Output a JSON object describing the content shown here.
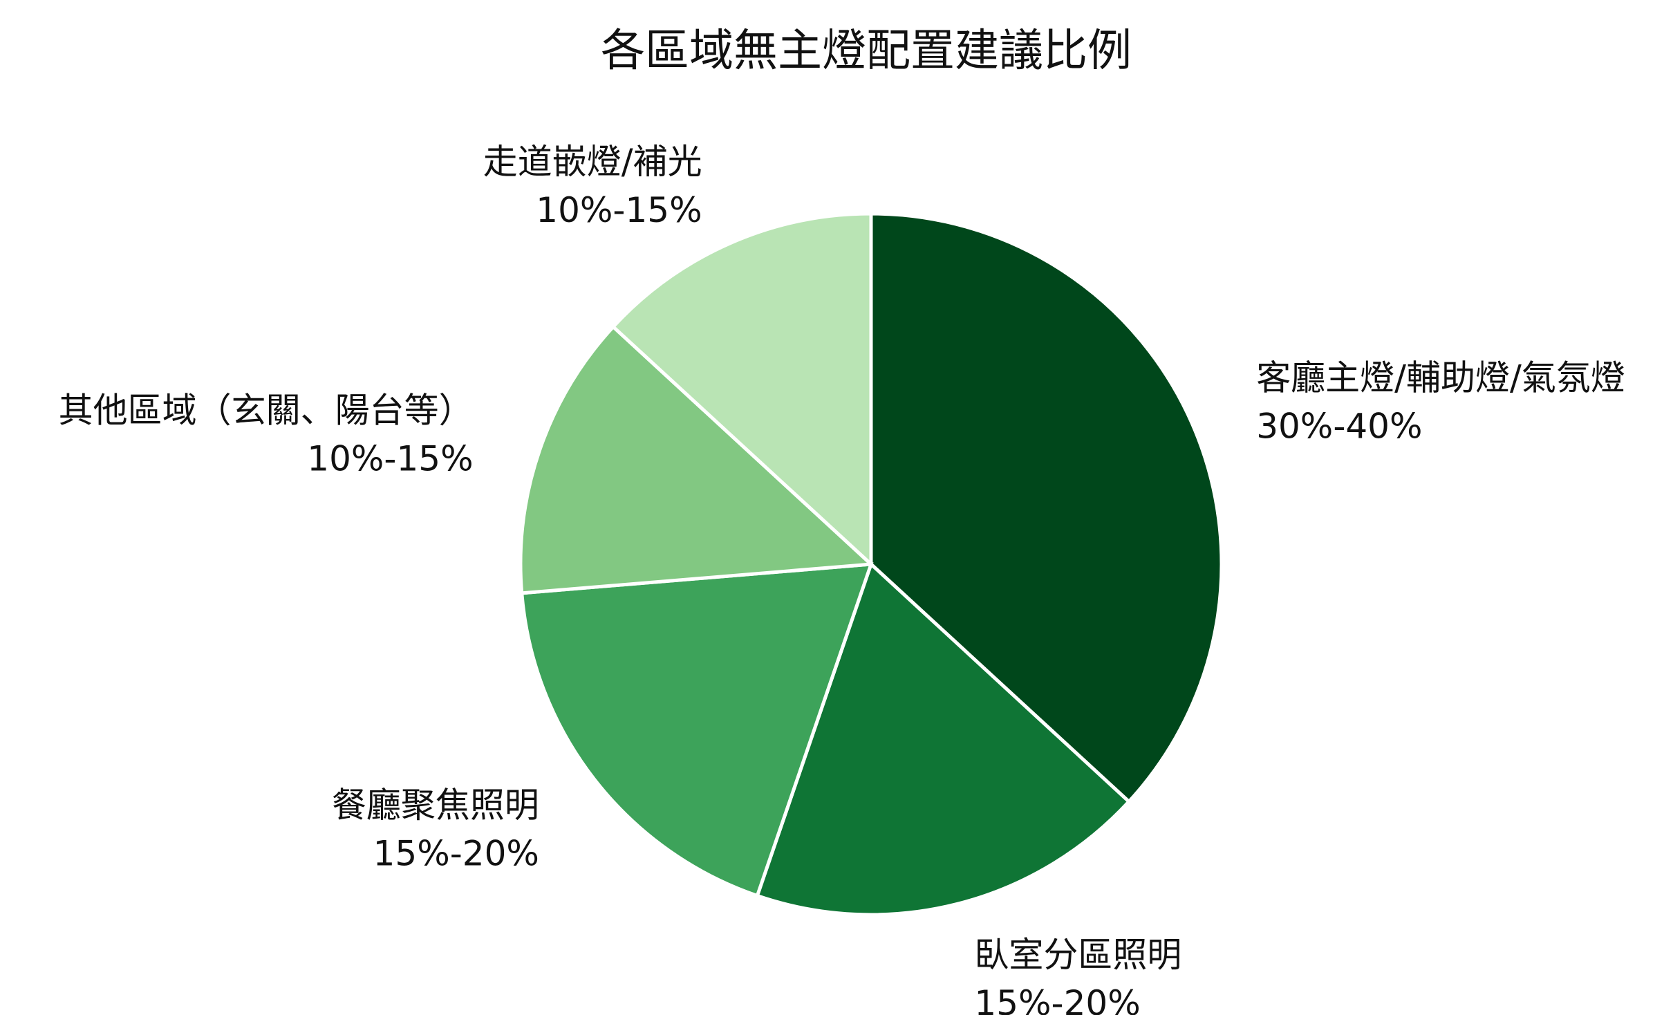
{
  "chart_data": {
    "type": "pie",
    "title": "各區域無主燈配置建議比例",
    "start_angle_deg": 0,
    "direction": "clockwise",
    "legend": "none",
    "slices": [
      {
        "name": "客廳主燈/輔助燈/氣氛燈",
        "range_label": "30%-40%",
        "value": 35,
        "color": "#00471b"
      },
      {
        "name": "臥室分區照明",
        "range_label": "15%-20%",
        "value": 17.5,
        "color": "#0f7535"
      },
      {
        "name": "餐廳聚焦照明",
        "range_label": "15%-20%",
        "value": 17.5,
        "color": "#3da35a"
      },
      {
        "name": "其他區域（玄關、陽台等）",
        "range_label": "10%-15%",
        "value": 12.5,
        "color": "#82c882"
      },
      {
        "name": "走道嵌燈/補光",
        "range_label": "10%-15%",
        "value": 12.5,
        "color": "#b9e4b4"
      }
    ]
  }
}
